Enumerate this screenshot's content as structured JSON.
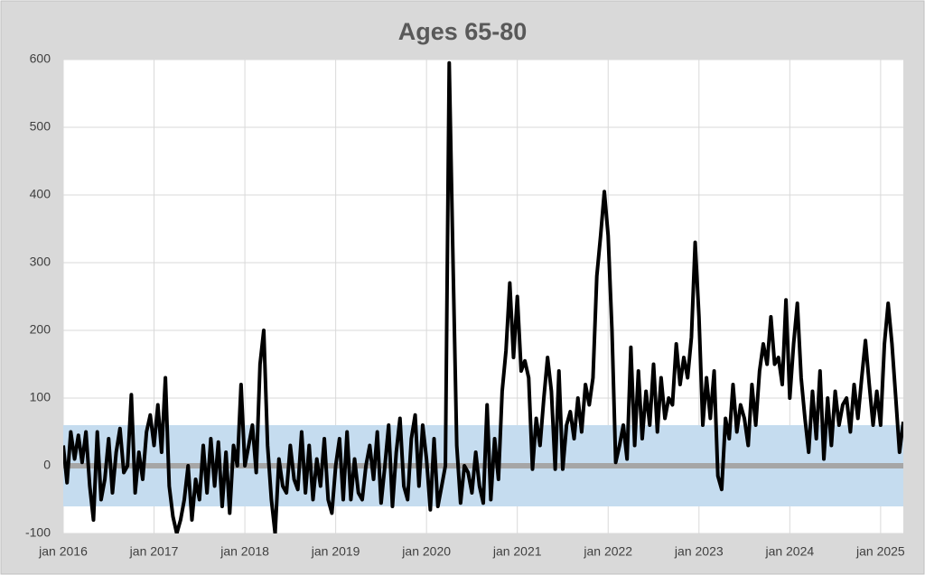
{
  "chart_data": {
    "type": "line",
    "title": "Ages 65-80",
    "x": [
      2016,
      2016.042,
      2016.083,
      2016.125,
      2016.167,
      2016.208,
      2016.25,
      2016.292,
      2016.333,
      2016.375,
      2016.417,
      2016.458,
      2016.5,
      2016.542,
      2016.583,
      2016.625,
      2016.667,
      2016.708,
      2016.75,
      2016.792,
      2016.833,
      2016.875,
      2016.917,
      2016.958,
      2017,
      2017.042,
      2017.083,
      2017.125,
      2017.167,
      2017.208,
      2017.25,
      2017.292,
      2017.333,
      2017.375,
      2017.417,
      2017.458,
      2017.5,
      2017.542,
      2017.583,
      2017.625,
      2017.667,
      2017.708,
      2017.75,
      2017.792,
      2017.833,
      2017.875,
      2017.917,
      2017.958,
      2018,
      2018.042,
      2018.083,
      2018.125,
      2018.167,
      2018.208,
      2018.25,
      2018.292,
      2018.333,
      2018.375,
      2018.417,
      2018.458,
      2018.5,
      2018.542,
      2018.583,
      2018.625,
      2018.667,
      2018.708,
      2018.75,
      2018.792,
      2018.833,
      2018.875,
      2018.917,
      2018.958,
      2019,
      2019.042,
      2019.083,
      2019.125,
      2019.167,
      2019.208,
      2019.25,
      2019.292,
      2019.333,
      2019.375,
      2019.417,
      2019.458,
      2019.5,
      2019.542,
      2019.583,
      2019.625,
      2019.667,
      2019.708,
      2019.75,
      2019.792,
      2019.833,
      2019.875,
      2019.917,
      2019.958,
      2020,
      2020.042,
      2020.083,
      2020.125,
      2020.167,
      2020.208,
      2020.25,
      2020.292,
      2020.333,
      2020.375,
      2020.417,
      2020.458,
      2020.5,
      2020.542,
      2020.583,
      2020.625,
      2020.667,
      2020.708,
      2020.75,
      2020.792,
      2020.833,
      2020.875,
      2020.917,
      2020.958,
      2021,
      2021.042,
      2021.083,
      2021.125,
      2021.167,
      2021.208,
      2021.25,
      2021.292,
      2021.333,
      2021.375,
      2021.417,
      2021.458,
      2021.5,
      2021.542,
      2021.583,
      2021.625,
      2021.667,
      2021.708,
      2021.75,
      2021.792,
      2021.833,
      2021.875,
      2021.917,
      2021.958,
      2022,
      2022.042,
      2022.083,
      2022.125,
      2022.167,
      2022.208,
      2022.25,
      2022.292,
      2022.333,
      2022.375,
      2022.417,
      2022.458,
      2022.5,
      2022.542,
      2022.583,
      2022.625,
      2022.667,
      2022.708,
      2022.75,
      2022.792,
      2022.833,
      2022.875,
      2022.917,
      2022.958,
      2023,
      2023.042,
      2023.083,
      2023.125,
      2023.167,
      2023.208,
      2023.25,
      2023.292,
      2023.333,
      2023.375,
      2023.417,
      2023.458,
      2023.5,
      2023.542,
      2023.583,
      2023.625,
      2023.667,
      2023.708,
      2023.75,
      2023.792,
      2023.833,
      2023.875,
      2023.917,
      2023.958,
      2024,
      2024.042,
      2024.083,
      2024.125,
      2024.167,
      2024.208,
      2024.25,
      2024.292,
      2024.333,
      2024.375,
      2024.417,
      2024.458,
      2024.5,
      2024.542,
      2024.583,
      2024.625,
      2024.667,
      2024.708,
      2024.75,
      2024.792,
      2024.833,
      2024.875,
      2024.917,
      2024.958,
      2025,
      2025.042,
      2025.083,
      2025.125,
      2025.167,
      2025.208,
      2025.25
    ],
    "series": [
      {
        "color": "#000000",
        "values": [
          30,
          -25,
          50,
          10,
          45,
          5,
          50,
          -30,
          -80,
          50,
          -50,
          -20,
          40,
          -40,
          20,
          55,
          -10,
          0,
          105,
          -40,
          20,
          -20,
          50,
          75,
          30,
          90,
          20,
          130,
          -30,
          -75,
          -100,
          -80,
          -50,
          0,
          -80,
          -20,
          -50,
          30,
          -40,
          40,
          -30,
          35,
          -60,
          20,
          -70,
          30,
          0,
          120,
          0,
          30,
          60,
          -10,
          150,
          200,
          30,
          -50,
          -100,
          10,
          -30,
          -40,
          30,
          -20,
          -35,
          50,
          -40,
          30,
          -50,
          10,
          -30,
          40,
          -50,
          -70,
          0,
          40,
          -50,
          50,
          -50,
          10,
          -40,
          -50,
          0,
          30,
          -20,
          50,
          -55,
          0,
          60,
          -60,
          20,
          70,
          -30,
          -50,
          40,
          75,
          -30,
          60,
          10,
          -65,
          40,
          -60,
          -30,
          0,
          595,
          300,
          30,
          -55,
          0,
          -10,
          -40,
          20,
          -30,
          -55,
          90,
          -50,
          40,
          -20,
          110,
          170,
          270,
          160,
          250,
          140,
          155,
          130,
          -5,
          70,
          30,
          100,
          160,
          110,
          -5,
          140,
          -5,
          60,
          80,
          40,
          100,
          50,
          120,
          90,
          130,
          280,
          340,
          405,
          340,
          200,
          5,
          30,
          60,
          10,
          175,
          30,
          140,
          40,
          110,
          60,
          150,
          50,
          130,
          70,
          100,
          90,
          180,
          120,
          160,
          130,
          190,
          330,
          220,
          60,
          130,
          70,
          140,
          -15,
          -35,
          70,
          40,
          120,
          50,
          90,
          70,
          30,
          120,
          60,
          140,
          180,
          150,
          220,
          150,
          160,
          120,
          245,
          100,
          180,
          240,
          130,
          70,
          20,
          110,
          40,
          140,
          10,
          100,
          30,
          110,
          60,
          90,
          100,
          50,
          120,
          70,
          130,
          185,
          120,
          60,
          110,
          60,
          180,
          240,
          180,
          100,
          20,
          65
        ]
      }
    ],
    "band": {
      "lower": -60,
      "upper": 60,
      "color": "#c5dcef"
    },
    "baseline": 0,
    "baseline_color": "#a6a6a6",
    "xlim": [
      2016,
      2025.25
    ],
    "xticks": [
      {
        "value": 2016,
        "label": "jan 2016"
      },
      {
        "value": 2017,
        "label": "jan 2017"
      },
      {
        "value": 2018,
        "label": "jan 2018"
      },
      {
        "value": 2019,
        "label": "jan 2019"
      },
      {
        "value": 2020,
        "label": "jan 2020"
      },
      {
        "value": 2021,
        "label": "jan 2021"
      },
      {
        "value": 2022,
        "label": "jan 2022"
      },
      {
        "value": 2023,
        "label": "jan 2023"
      },
      {
        "value": 2024,
        "label": "jan 2024"
      },
      {
        "value": 2025,
        "label": "jan 2025"
      }
    ],
    "ylim": [
      -100,
      600
    ],
    "yticks": [
      -100,
      0,
      100,
      200,
      300,
      400,
      500,
      600
    ],
    "grid": true
  }
}
